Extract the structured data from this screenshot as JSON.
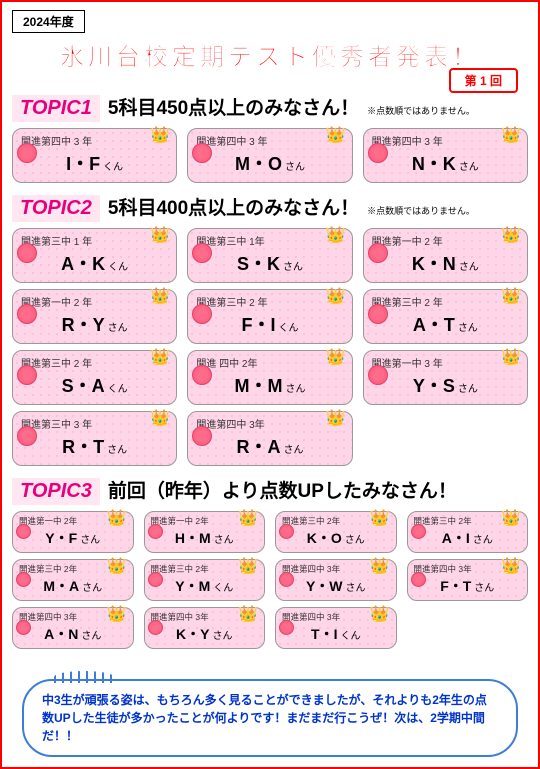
{
  "header": {
    "year": "2024年度",
    "title": "氷川台校定期テスト優秀者発表！",
    "edition": "第 1 回"
  },
  "topic1": {
    "label": "TOPIC1",
    "text": "5科目450点以上のみなさん！",
    "note": "※点数順ではありません。",
    "cards": [
      {
        "school": "開進第四中 3 年",
        "name": "I・F",
        "suffix": "くん"
      },
      {
        "school": "開進第四中 3 年",
        "name": "M・O",
        "suffix": "さん"
      },
      {
        "school": "開進第四中 3 年",
        "name": "N・K",
        "suffix": "さん"
      }
    ]
  },
  "topic2": {
    "label": "TOPIC2",
    "text": "5科目400点以上のみなさん！",
    "note": "※点数順ではありません。",
    "cards": [
      {
        "school": "開進第三中 1 年",
        "name": "A・K",
        "suffix": "くん"
      },
      {
        "school": "開進第三中 1年",
        "name": "S・K",
        "suffix": "さん"
      },
      {
        "school": "開進第一中 2 年",
        "name": "K・N",
        "suffix": "さん"
      },
      {
        "school": "開進第一中 2 年",
        "name": "R・Y",
        "suffix": "さん"
      },
      {
        "school": "開進第三中 2 年",
        "name": "F・I",
        "suffix": "くん"
      },
      {
        "school": "開進第三中 2 年",
        "name": "A・T",
        "suffix": "さん"
      },
      {
        "school": "開進第三中 2 年",
        "name": "S・A",
        "suffix": "くん"
      },
      {
        "school": "開進 四中 2年",
        "name": "M・M",
        "suffix": "さん"
      },
      {
        "school": "開進第一中 3 年",
        "name": "Y・S",
        "suffix": "さん"
      },
      {
        "school": "開進第三中 3 年",
        "name": "R・T",
        "suffix": "さん"
      },
      {
        "school": "開進第四中 3年",
        "name": "R・A",
        "suffix": "さん"
      }
    ]
  },
  "topic3": {
    "label": "TOPIC3",
    "text": "前回（昨年）より点数UPしたみなさん！",
    "cards": [
      {
        "school": "開進第一中 2年",
        "name": "Y・F",
        "suffix": "さん"
      },
      {
        "school": "開進第一中 2年",
        "name": "H・M",
        "suffix": "さん"
      },
      {
        "school": "開進第三中 2年",
        "name": "K・O",
        "suffix": "さん"
      },
      {
        "school": "開進第三中 2年",
        "name": "A・I",
        "suffix": "さん"
      },
      {
        "school": "開進第三中 2年",
        "name": "M・A",
        "suffix": "さん"
      },
      {
        "school": "開進第三中 2年",
        "name": "Y・M",
        "suffix": "くん"
      },
      {
        "school": "開進第四中 3年",
        "name": "Y・W",
        "suffix": "さん"
      },
      {
        "school": "開進第四中 3年",
        "name": "F・T",
        "suffix": "さん"
      },
      {
        "school": "開進第四中 3年",
        "name": "A・N",
        "suffix": "さん"
      },
      {
        "school": "開進第四中 3年",
        "name": "K・Y",
        "suffix": "さん"
      },
      {
        "school": "開進第四中 3年",
        "name": "T・I",
        "suffix": "くん"
      }
    ]
  },
  "footer": {
    "bubble": "中3生が頑張る姿は、もちろん多く見ることができましたが、それよりも2年生の点数UPした生徒が多かったことが何よりです！まだまだ行こうぜ！次は、2学期中間だ！！"
  },
  "colors": {
    "red": "#ff0000",
    "pink_card": "#ffd6e8",
    "magenta": "#e6007e",
    "blue_text": "#0033cc"
  }
}
